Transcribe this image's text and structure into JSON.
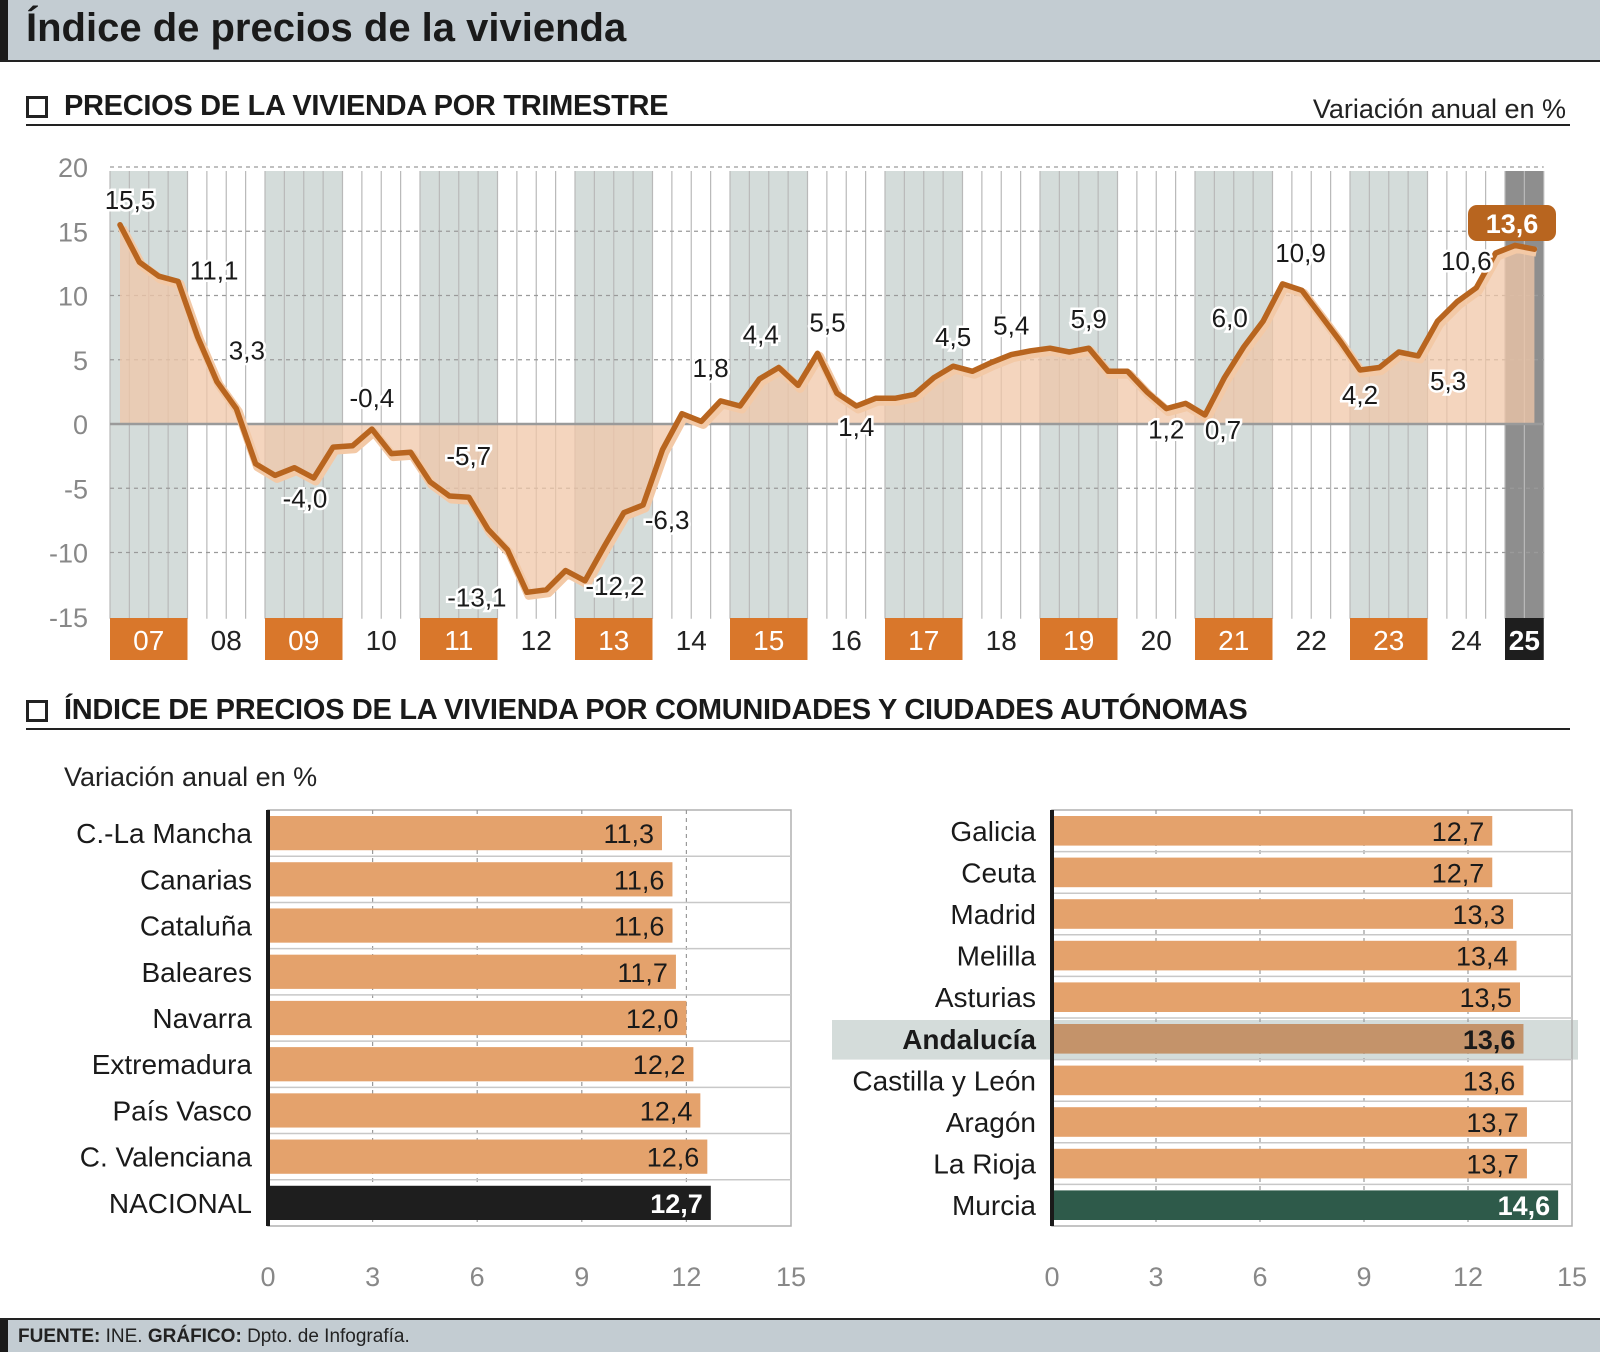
{
  "title": "Índice de precios de la vivienda",
  "colors": {
    "orange": "#d9772b",
    "line": "#b8651f",
    "area": "#f0c7a8",
    "bar": "#e4a26c",
    "dark": "#1e1e1e",
    "green": "#2e5a4a",
    "band": "#d4dcda"
  },
  "section1": {
    "title": "PRECIOS DE LA VIVIENDA POR TRIMESTRE",
    "unit": "Variación anual en %"
  },
  "section2": {
    "title": "ÍNDICE DE PRECIOS DE LA VIVIENDA POR COMUNIDADES Y CIUDADES AUTÓNOMAS",
    "unit": "Variación anual en %"
  },
  "footer": {
    "source_label": "FUENTE:",
    "source": "INE.",
    "graphic_label": "GRÁFICO:",
    "graphic": "Dpto. de Infografía."
  },
  "chart_data": [
    {
      "type": "line",
      "title": "PRECIOS DE LA VIVIENDA POR TRIMESTRE",
      "ylabel": "Variación anual en %",
      "ylim": [
        -15,
        20
      ],
      "yticks": [
        20,
        15,
        10,
        5,
        0,
        -5,
        -10,
        -15
      ],
      "years": [
        "07",
        "08",
        "09",
        "10",
        "11",
        "12",
        "13",
        "14",
        "15",
        "16",
        "17",
        "18",
        "19",
        "20",
        "21",
        "22",
        "23",
        "24",
        "25"
      ],
      "highlight_years": [
        "07",
        "09",
        "11",
        "13",
        "15",
        "17",
        "19",
        "21",
        "23"
      ],
      "current_year": "25",
      "quarters_per_year": 4,
      "values": [
        15.5,
        12.6,
        11.5,
        11.1,
        6.8,
        3.3,
        1.2,
        -3.1,
        -4.0,
        -3.4,
        -4.2,
        -1.8,
        -1.7,
        -0.4,
        -2.3,
        -2.2,
        -4.5,
        -5.6,
        -5.7,
        -8.2,
        -9.8,
        -13.1,
        -12.9,
        -11.4,
        -12.2,
        -9.5,
        -6.9,
        -6.3,
        -2.0,
        0.8,
        0.2,
        1.8,
        1.4,
        3.5,
        4.4,
        3.0,
        5.5,
        2.4,
        1.4,
        2.0,
        2.0,
        2.3,
        3.6,
        4.5,
        4.1,
        4.8,
        5.4,
        5.7,
        5.9,
        5.6,
        5.9,
        4.1,
        4.1,
        2.5,
        1.2,
        1.6,
        0.7,
        3.6,
        6.0,
        8.0,
        10.9,
        10.4,
        8.4,
        6.4,
        4.2,
        4.4,
        5.6,
        5.3,
        8.0,
        9.5,
        10.6,
        13.3,
        13.9,
        13.6
      ],
      "point_labels": [
        {
          "i": 0,
          "text": "15,5",
          "dx": 10,
          "dy": -16
        },
        {
          "i": 3,
          "text": "11,1",
          "dx": 36,
          "dy": -2
        },
        {
          "i": 5,
          "text": "3,3",
          "dx": 30,
          "dy": -22
        },
        {
          "i": 8,
          "text": "-4,0",
          "dx": 30,
          "dy": 32
        },
        {
          "i": 13,
          "text": "-0,4",
          "dx": 0,
          "dy": -22
        },
        {
          "i": 18,
          "text": "-5,7",
          "dx": 0,
          "dy": -32
        },
        {
          "i": 21,
          "text": "-13,1",
          "dx": -50,
          "dy": 14
        },
        {
          "i": 24,
          "text": "-12,2",
          "dx": 30,
          "dy": 14
        },
        {
          "i": 27,
          "text": "-6,3",
          "dx": 24,
          "dy": 24
        },
        {
          "i": 31,
          "text": "1,8",
          "dx": -10,
          "dy": -24
        },
        {
          "i": 34,
          "text": "4,4",
          "dx": -18,
          "dy": -24
        },
        {
          "i": 36,
          "text": "5,5",
          "dx": 10,
          "dy": -22
        },
        {
          "i": 38,
          "text": "1,4",
          "dx": 0,
          "dy": 30
        },
        {
          "i": 43,
          "text": "4,5",
          "dx": 0,
          "dy": -20
        },
        {
          "i": 46,
          "text": "5,4",
          "dx": 0,
          "dy": -20
        },
        {
          "i": 50,
          "text": "5,9",
          "dx": 0,
          "dy": -20
        },
        {
          "i": 54,
          "text": "1,2",
          "dx": 0,
          "dy": 30
        },
        {
          "i": 56,
          "text": "0,7",
          "dx": 18,
          "dy": 24
        },
        {
          "i": 58,
          "text": "6,0",
          "dx": -14,
          "dy": -20
        },
        {
          "i": 60,
          "text": "10,9",
          "dx": 18,
          "dy": -22
        },
        {
          "i": 64,
          "text": "4,2",
          "dx": 0,
          "dy": 34
        },
        {
          "i": 67,
          "text": "5,3",
          "dx": 30,
          "dy": 34
        },
        {
          "i": 70,
          "text": "10,6",
          "dx": -10,
          "dy": -18
        }
      ],
      "last_label": "13,6"
    },
    {
      "type": "bar",
      "orientation": "horizontal",
      "xlim": [
        0,
        15
      ],
      "xticks": [
        0,
        3,
        6,
        9,
        12,
        15
      ],
      "categories": [
        "C.-La Mancha",
        "Canarias",
        "Cataluña",
        "Baleares",
        "Navarra",
        "Extremadura",
        "País Vasco",
        "C. Valenciana",
        "NACIONAL"
      ],
      "values": [
        11.3,
        11.6,
        11.6,
        11.7,
        12.0,
        12.2,
        12.4,
        12.6,
        12.7
      ],
      "labels": [
        "11,3",
        "11,6",
        "11,6",
        "11,7",
        "12,0",
        "12,2",
        "12,4",
        "12,6",
        "12,7"
      ],
      "highlight": "NACIONAL"
    },
    {
      "type": "bar",
      "orientation": "horizontal",
      "xlim": [
        0,
        15
      ],
      "xticks": [
        0,
        3,
        6,
        9,
        12,
        15
      ],
      "categories": [
        "Galicia",
        "Ceuta",
        "Madrid",
        "Melilla",
        "Asturias",
        "Andalucía",
        "Castilla y León",
        "Aragón",
        "La Rioja",
        "Murcia"
      ],
      "values": [
        12.7,
        12.7,
        13.3,
        13.4,
        13.5,
        13.6,
        13.6,
        13.7,
        13.7,
        14.6
      ],
      "labels": [
        "12,7",
        "12,7",
        "13,3",
        "13,4",
        "13,5",
        "13,6",
        "13,6",
        "13,7",
        "13,7",
        "14,6"
      ],
      "emphasis": "Andalucía",
      "highlight": "Murcia"
    }
  ]
}
